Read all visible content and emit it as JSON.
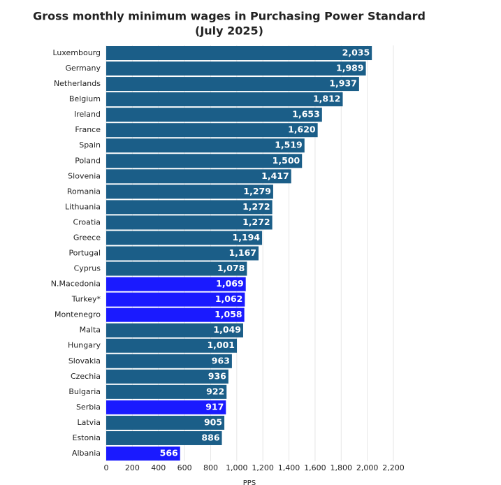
{
  "chart_data": {
    "type": "hbar",
    "title": [
      "Gross monthly minimum wages in Purchasing Power Standard",
      "(July 2025)"
    ],
    "x_label": "PPS",
    "categories": [
      "Luxembourg",
      "Germany",
      "Netherlands",
      "Belgium",
      "Ireland",
      "France",
      "Spain",
      "Poland",
      "Slovenia",
      "Romania",
      "Lithuania",
      "Croatia",
      "Greece",
      "Portugal",
      "Cyprus",
      "N.Macedonia",
      "Turkey*",
      "Montenegro",
      "Malta",
      "Hungary",
      "Slovakia",
      "Czechia",
      "Bulgaria",
      "Serbia",
      "Latvia",
      "Estonia",
      "Albania"
    ],
    "values": [
      2035,
      1989,
      1937,
      1812,
      1653,
      1620,
      1519,
      1500,
      1417,
      1279,
      1272,
      1272,
      1194,
      1167,
      1078,
      1069,
      1062,
      1058,
      1049,
      1001,
      963,
      936,
      922,
      917,
      905,
      886,
      566
    ],
    "value_labels": [
      "2,035",
      "1,989",
      "1,937",
      "1,812",
      "1,653",
      "1,620",
      "1,519",
      "1,500",
      "1,417",
      "1,279",
      "1,272",
      "1,272",
      "1,194",
      "1,167",
      "1,078",
      "1,069",
      "1,062",
      "1,058",
      "1,049",
      "1,001",
      "963",
      "936",
      "922",
      "917",
      "905",
      "886",
      "566"
    ],
    "colors": [
      "#1b5e88",
      "#1b5e88",
      "#1b5e88",
      "#1b5e88",
      "#1b5e88",
      "#1b5e88",
      "#1b5e88",
      "#1b5e88",
      "#1b5e88",
      "#1b5e88",
      "#1b5e88",
      "#1b5e88",
      "#1b5e88",
      "#1b5e88",
      "#1b5e88",
      "#1a1aff",
      "#1a1aff",
      "#1a1aff",
      "#1b5e88",
      "#1b5e88",
      "#1b5e88",
      "#1b5e88",
      "#1b5e88",
      "#1a1aff",
      "#1b5e88",
      "#1b5e88",
      "#1a1aff"
    ],
    "xlim": [
      0,
      2200
    ],
    "xticks": [
      0,
      200,
      400,
      600,
      800,
      {
        "value": 1000,
        "label": "1,000"
      },
      {
        "value": 1200,
        "label": "1,200"
      },
      {
        "value": 1400,
        "label": "1,400"
      },
      {
        "value": 1600,
        "label": "1,600"
      },
      {
        "value": 1800,
        "label": "1,800"
      },
      {
        "value": 2000,
        "label": "2,000"
      },
      {
        "value": 2200,
        "label": "2,200"
      }
    ],
    "grid": true
  }
}
